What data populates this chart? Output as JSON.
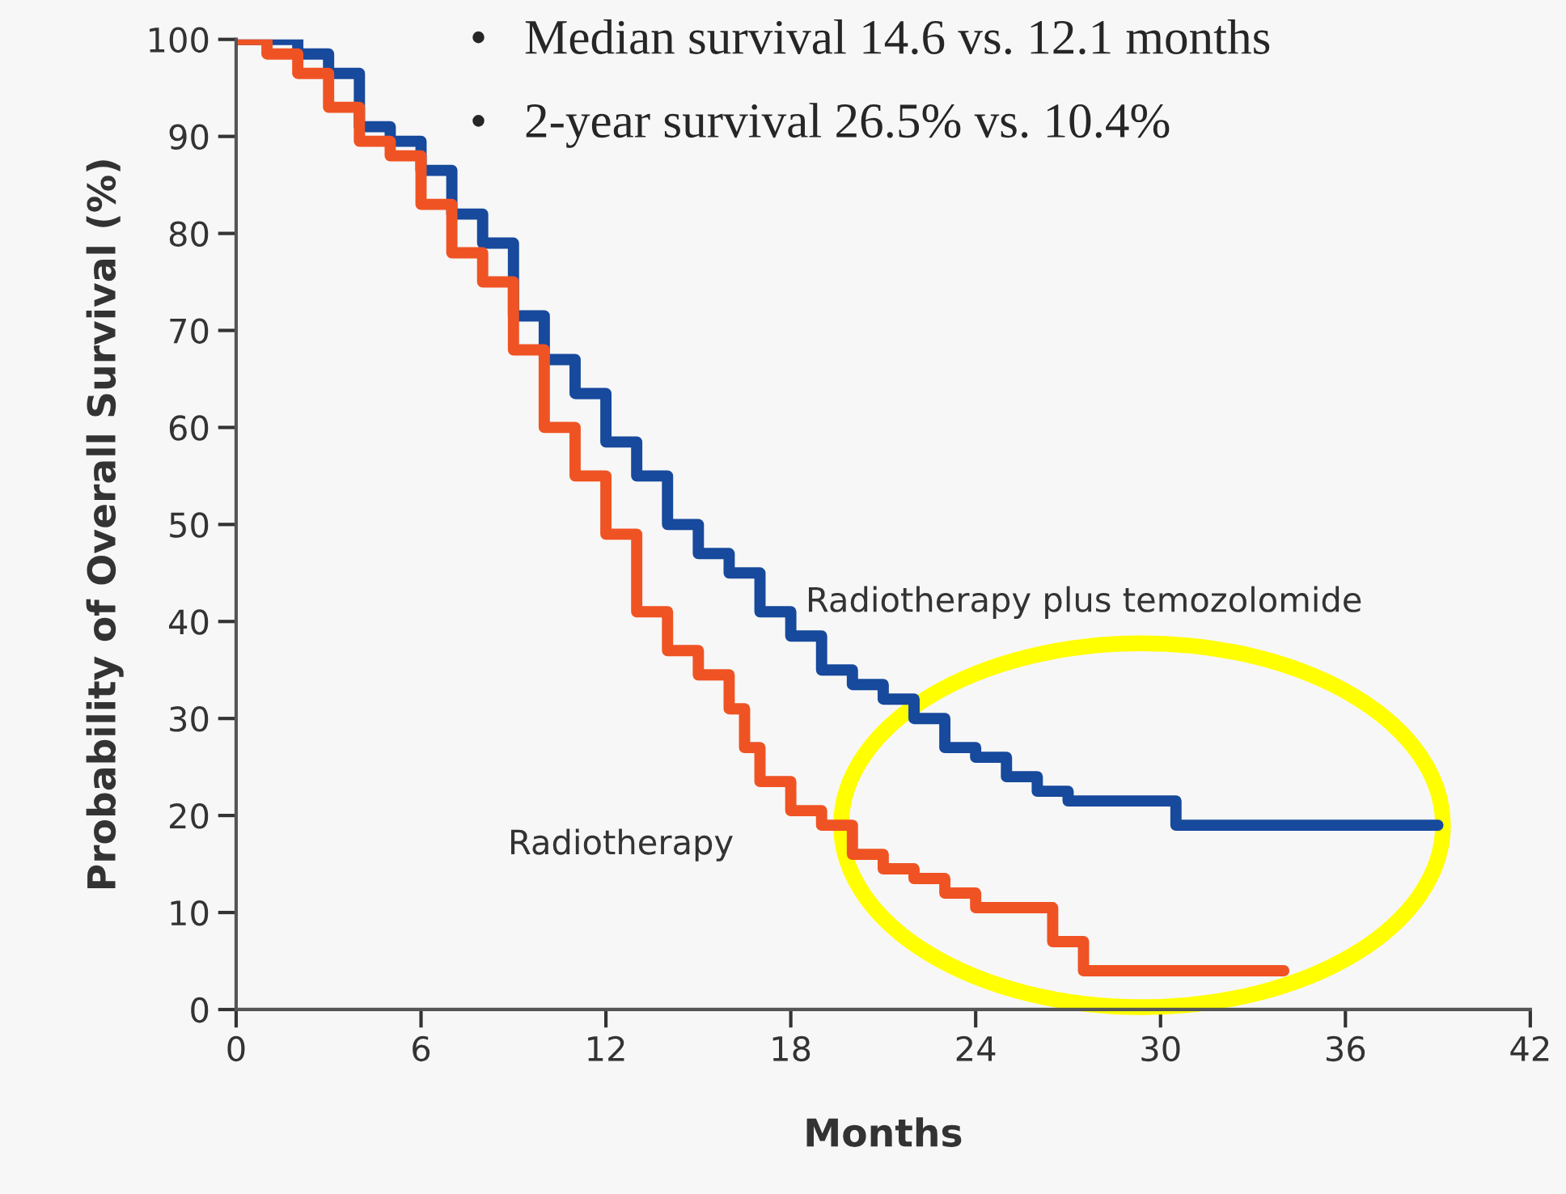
{
  "chart_data": {
    "type": "step",
    "xlabel": "Months",
    "ylabel": "Probability of Overall Survival (%)",
    "annotations": [
      "•   Median survival 14.6 vs. 12.1 months",
      "•   2-year survival 26.5% vs. 10.4%"
    ],
    "series": [
      {
        "name": "Radiotherapy plus temozolomide",
        "color": "#17499c",
        "x": [
          0,
          1,
          2,
          3,
          4,
          5,
          6,
          7,
          8,
          9,
          10,
          11,
          12,
          13,
          14,
          15,
          16,
          17,
          18,
          19,
          20,
          21,
          22,
          23,
          24,
          25,
          26,
          27,
          30.5,
          39
        ],
        "values": [
          100,
          100,
          98.5,
          96.5,
          91,
          89.5,
          86.5,
          82,
          79,
          71.5,
          67,
          63.5,
          58.5,
          55,
          50,
          47,
          45,
          41,
          38.5,
          35,
          33.5,
          32,
          30,
          27,
          26,
          24,
          22.5,
          21.5,
          19,
          19
        ]
      },
      {
        "name": "Radiotherapy",
        "color": "#f05323",
        "x": [
          0,
          1,
          2,
          3,
          4,
          5,
          6,
          7,
          8,
          9,
          10,
          11,
          12,
          13,
          14,
          15,
          16,
          16.5,
          17,
          18,
          19,
          20,
          21,
          22,
          23,
          24,
          26.5,
          27.5,
          34
        ],
        "values": [
          100,
          98.5,
          96.5,
          93,
          89.5,
          88,
          83,
          78,
          75,
          68,
          60,
          55,
          49,
          41,
          37,
          34.5,
          31,
          27,
          23.5,
          20.5,
          19,
          16,
          14.5,
          13.5,
          12,
          10.5,
          7,
          4,
          4
        ]
      }
    ],
    "xlim": [
      0,
      42
    ],
    "xticks": [
      0,
      6,
      12,
      18,
      24,
      30,
      36,
      42
    ],
    "ylim": [
      0,
      100
    ],
    "yticks": [
      0,
      10,
      20,
      30,
      40,
      50,
      60,
      70,
      80,
      90,
      100
    ],
    "grid": false,
    "legend": false
  }
}
